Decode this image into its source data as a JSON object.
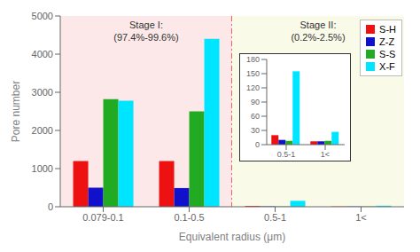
{
  "chart_data": [
    {
      "type": "bar",
      "categories": [
        "0.079-0.1",
        "0.1-0.5",
        "0.5-1",
        "1<"
      ],
      "series": [
        {
          "name": "S-H",
          "color": "#ee1111",
          "values": [
            1200,
            1200,
            20,
            7
          ]
        },
        {
          "name": "Z-Z",
          "color": "#1111cc",
          "values": [
            500,
            490,
            10,
            7
          ]
        },
        {
          "name": "S-S",
          "color": "#22aa22",
          "values": [
            2820,
            2500,
            8,
            8
          ]
        },
        {
          "name": "X-F",
          "color": "#00e5ff",
          "values": [
            2780,
            4400,
            155,
            27
          ]
        }
      ],
      "xlabel": "Equivalent radius (μm)",
      "ylabel": "Pore number",
      "ylim": [
        0,
        5000
      ],
      "yticks": [
        0,
        1000,
        2000,
        3000,
        4000,
        5000
      ],
      "grid": false,
      "legend": "upper right",
      "annotations": [
        {
          "text": "Stage I:\n(97.4%-99.6%)",
          "color": "#fce8e8",
          "categories": [
            "0.079-0.1",
            "0.1-0.5"
          ]
        },
        {
          "text": "Stage II:\n(0.2%-2.5%)",
          "color": "#fafae8",
          "categories": [
            "0.5-1",
            "1<"
          ]
        }
      ]
    },
    {
      "type": "bar",
      "categories": [
        "0.5-1",
        "1<"
      ],
      "series": [
        {
          "name": "S-H",
          "color": "#ee1111",
          "values": [
            20,
            7
          ]
        },
        {
          "name": "Z-Z",
          "color": "#1111cc",
          "values": [
            10,
            7
          ]
        },
        {
          "name": "S-S",
          "color": "#22aa22",
          "values": [
            8,
            8
          ]
        },
        {
          "name": "X-F",
          "color": "#00e5ff",
          "values": [
            155,
            27
          ]
        }
      ],
      "ylim": [
        0,
        180
      ],
      "yticks": [
        0,
        30,
        60,
        90,
        120,
        150,
        180
      ],
      "grid": false
    }
  ]
}
